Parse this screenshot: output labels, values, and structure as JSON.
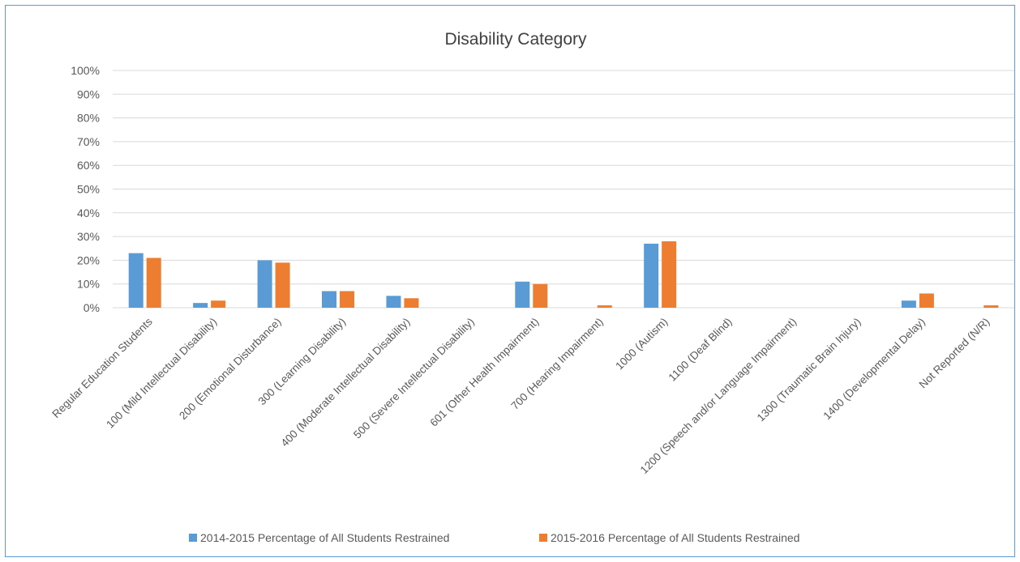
{
  "chart_data": {
    "type": "bar",
    "title": "Disability Category",
    "xlabel": "",
    "ylabel": "",
    "ylim": [
      0,
      100
    ],
    "y_ticks": [
      "0%",
      "10%",
      "20%",
      "30%",
      "40%",
      "50%",
      "60%",
      "70%",
      "80%",
      "90%",
      "100%"
    ],
    "grid": true,
    "legend_position": "bottom",
    "categories": [
      "Regular Education Students",
      "100 (Mild Intellectual Disability)",
      "200 (Emotional Disturbance)",
      "300 (Learning Disability)",
      "400 (Moderate Intellectual Disability)",
      "500 (Severe Intellectual Disability)",
      "601 (Other Health Impairment)",
      "700 (Hearing Impairment)",
      "1000 (Autism)",
      "1100 (Deaf Blind)",
      "1200 (Speech and/or Language Impairment)",
      "1300 (Traumatic Brain Injury)",
      "1400 (Developmental Delay)",
      "Not Reported (N/R)"
    ],
    "series": [
      {
        "name": "2014-2015 Percentage of All Students Restrained",
        "color": "#5b9bd5",
        "values": [
          23,
          2,
          20,
          7,
          5,
          0,
          11,
          0,
          27,
          0,
          0,
          0,
          3,
          0
        ]
      },
      {
        "name": "2015-2016 Percentage of All Students Restrained",
        "color": "#ed7d31",
        "values": [
          21,
          3,
          19,
          7,
          4,
          0,
          10,
          1,
          28,
          0,
          0,
          0,
          6,
          1
        ]
      }
    ]
  }
}
